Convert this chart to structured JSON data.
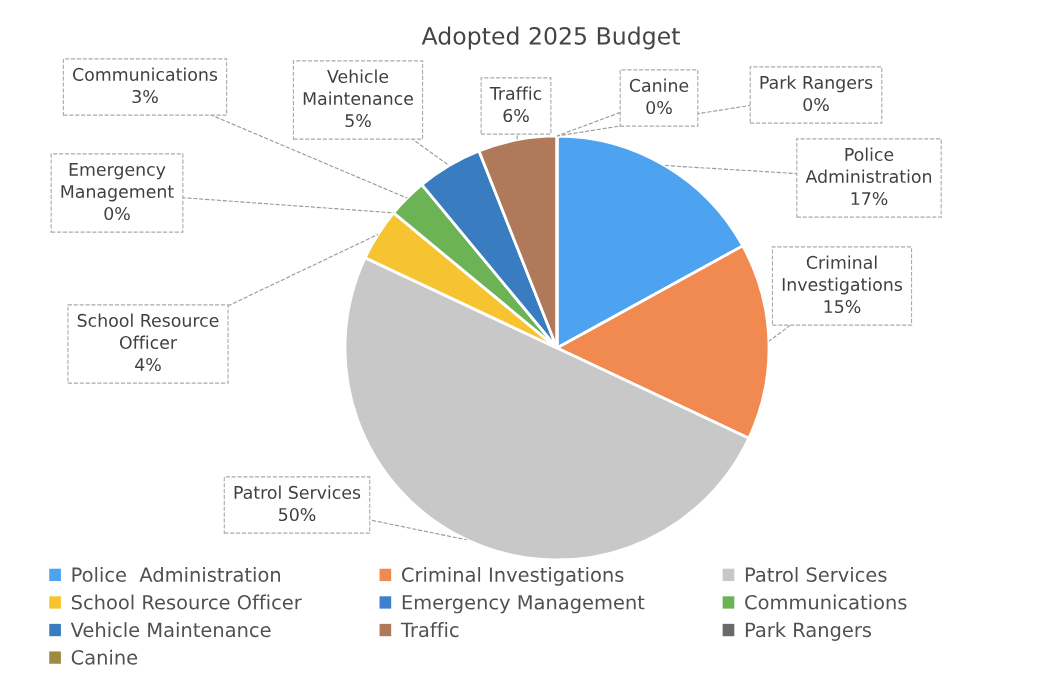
{
  "chart_data": {
    "type": "pie",
    "title": "Adopted 2025 Budget",
    "categories": [
      "Police  Administration",
      "Criminal Investigations",
      "Patrol Services",
      "School Resource Officer",
      "Emergency Management",
      "Communications",
      "Vehicle Maintenance",
      "Traffic",
      "Park Rangers",
      "Canine"
    ],
    "values": [
      17,
      15,
      50,
      4,
      0,
      3,
      5,
      6,
      0,
      0
    ],
    "colors": [
      "#4da3f0",
      "#f08a50",
      "#c8c8c8",
      "#f7c431",
      "#3f7fd0",
      "#6cb356",
      "#3a7cc0",
      "#b07a5a",
      "#6a6a6a",
      "#a08a40"
    ],
    "value_labels": [
      "17%",
      "15%",
      "50%",
      "4%",
      "0%",
      "3%",
      "5%",
      "6%",
      "0%",
      "0%"
    ],
    "legend": "bottom"
  }
}
